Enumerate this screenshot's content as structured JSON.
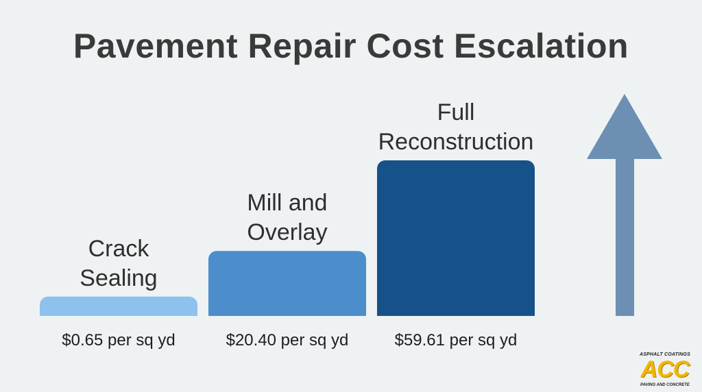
{
  "chart_data": {
    "type": "bar",
    "title": "Pavement Repair Cost Escalation",
    "categories": [
      [
        "Crack",
        "Sealing"
      ],
      [
        "Mill and",
        "Overlay"
      ],
      [
        "Full",
        "Reconstruction"
      ]
    ],
    "values": [
      0.65,
      20.4,
      59.61
    ],
    "value_labels": [
      "$0.65 per sq yd",
      "$20.40 per sq yd",
      "$59.61 per sq yd"
    ],
    "colors": [
      "#8cc2ec",
      "#4b8ecb",
      "#175189"
    ],
    "arrow_color": "#6c8fb3",
    "unit": "per sq yd",
    "grid": false
  },
  "logo": {
    "top_text": "ASPHALT COATINGS",
    "mark": "ACC",
    "bottom_text": "PAVING AND CONCRETE"
  }
}
